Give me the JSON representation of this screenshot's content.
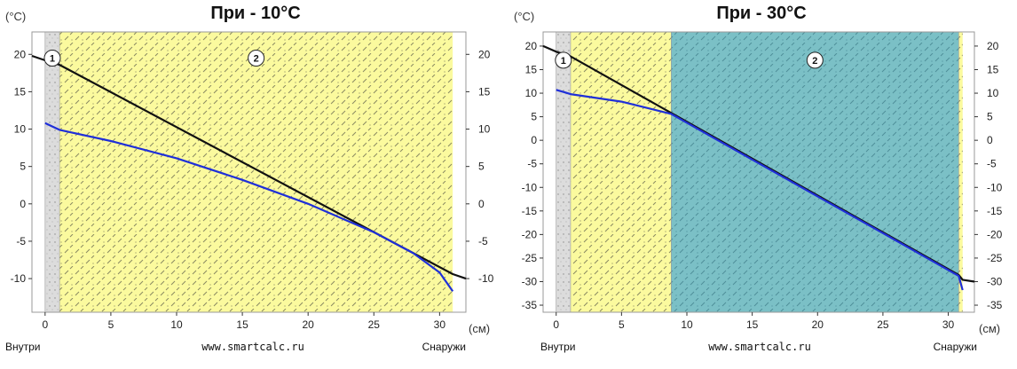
{
  "colors": {
    "interior_layer": "#dcdcdc",
    "insulation_yellow": "#fbfa9e",
    "insulation_teal": "#7bc0c6",
    "hatch": "#8a8a62",
    "hatch_teal": "#4f8f9a",
    "temperature_line": "#111111",
    "dew_point_line": "#1f2fd8"
  },
  "chart_data": [
    {
      "type": "line",
      "title": "При - 10°C",
      "ylabel": "(°C)",
      "xlabel": "(см)",
      "left_label": "Внутри",
      "right_label": "Снаружи",
      "watermark": "www.smartcalc.ru",
      "xlim": [
        -1,
        32
      ],
      "ylim": [
        -14.5,
        23
      ],
      "xticks": [
        0,
        5,
        10,
        15,
        20,
        25,
        30
      ],
      "yticks": [
        20,
        15,
        10,
        5,
        0,
        -5,
        -10
      ],
      "layers": [
        {
          "label": "1",
          "from": 0,
          "to": 1.1,
          "fill": "interior_layer",
          "marker_y": 19.5
        },
        {
          "label": "2",
          "from": 1.1,
          "to": 31,
          "fill": "insulation_yellow",
          "marker_y": 19.5
        }
      ],
      "series": [
        {
          "color": "temperature_line",
          "x": [
            -1,
            0,
            1.1,
            31,
            32
          ],
          "y": [
            19.8,
            19.2,
            18.6,
            -9.4,
            -10
          ]
        },
        {
          "color": "dew_point_line",
          "x": [
            0,
            0.5,
            1.1,
            5,
            10,
            15,
            20,
            25,
            28,
            30,
            31
          ],
          "y": [
            10.8,
            10.4,
            9.9,
            8.4,
            6.1,
            3.2,
            0,
            -3.8,
            -6.6,
            -9.2,
            -11.7
          ]
        }
      ]
    },
    {
      "type": "line",
      "title": "При - 30°C",
      "ylabel": "(°C)",
      "xlabel": "(см)",
      "left_label": "Внутри",
      "right_label": "Снаружи",
      "watermark": "www.smartcalc.ru",
      "xlim": [
        -1,
        32
      ],
      "ylim": [
        -36.5,
        23
      ],
      "xticks": [
        0,
        5,
        10,
        15,
        20,
        25,
        30
      ],
      "yticks": [
        20,
        15,
        10,
        5,
        0,
        -5,
        -10,
        -15,
        -20,
        -25,
        -30,
        -35
      ],
      "layers": [
        {
          "label": "1",
          "from": 0,
          "to": 1.1,
          "fill": "interior_layer",
          "marker_y": 17
        },
        {
          "label": "",
          "from": 1.1,
          "to": 8.8,
          "fill": "insulation_yellow"
        },
        {
          "label": "2",
          "from": 8.8,
          "to": 30.8,
          "fill": "insulation_teal",
          "marker_y": 17
        },
        {
          "label": "",
          "from": 30.8,
          "to": 31.1,
          "fill": "insulation_yellow"
        }
      ],
      "series": [
        {
          "color": "temperature_line",
          "x": [
            -1,
            0,
            1.1,
            8.8,
            30.8,
            31.1,
            32
          ],
          "y": [
            20,
            18.8,
            17.8,
            5.8,
            -28.6,
            -29.6,
            -30
          ]
        },
        {
          "color": "dew_point_line",
          "x": [
            0,
            0.5,
            1.1,
            5,
            8.8,
            15,
            20,
            25,
            30.8,
            31.1
          ],
          "y": [
            10.7,
            10.3,
            9.8,
            8.2,
            5.6,
            -4.1,
            -11.9,
            -19.7,
            -28.8,
            -31.8
          ]
        }
      ]
    }
  ]
}
